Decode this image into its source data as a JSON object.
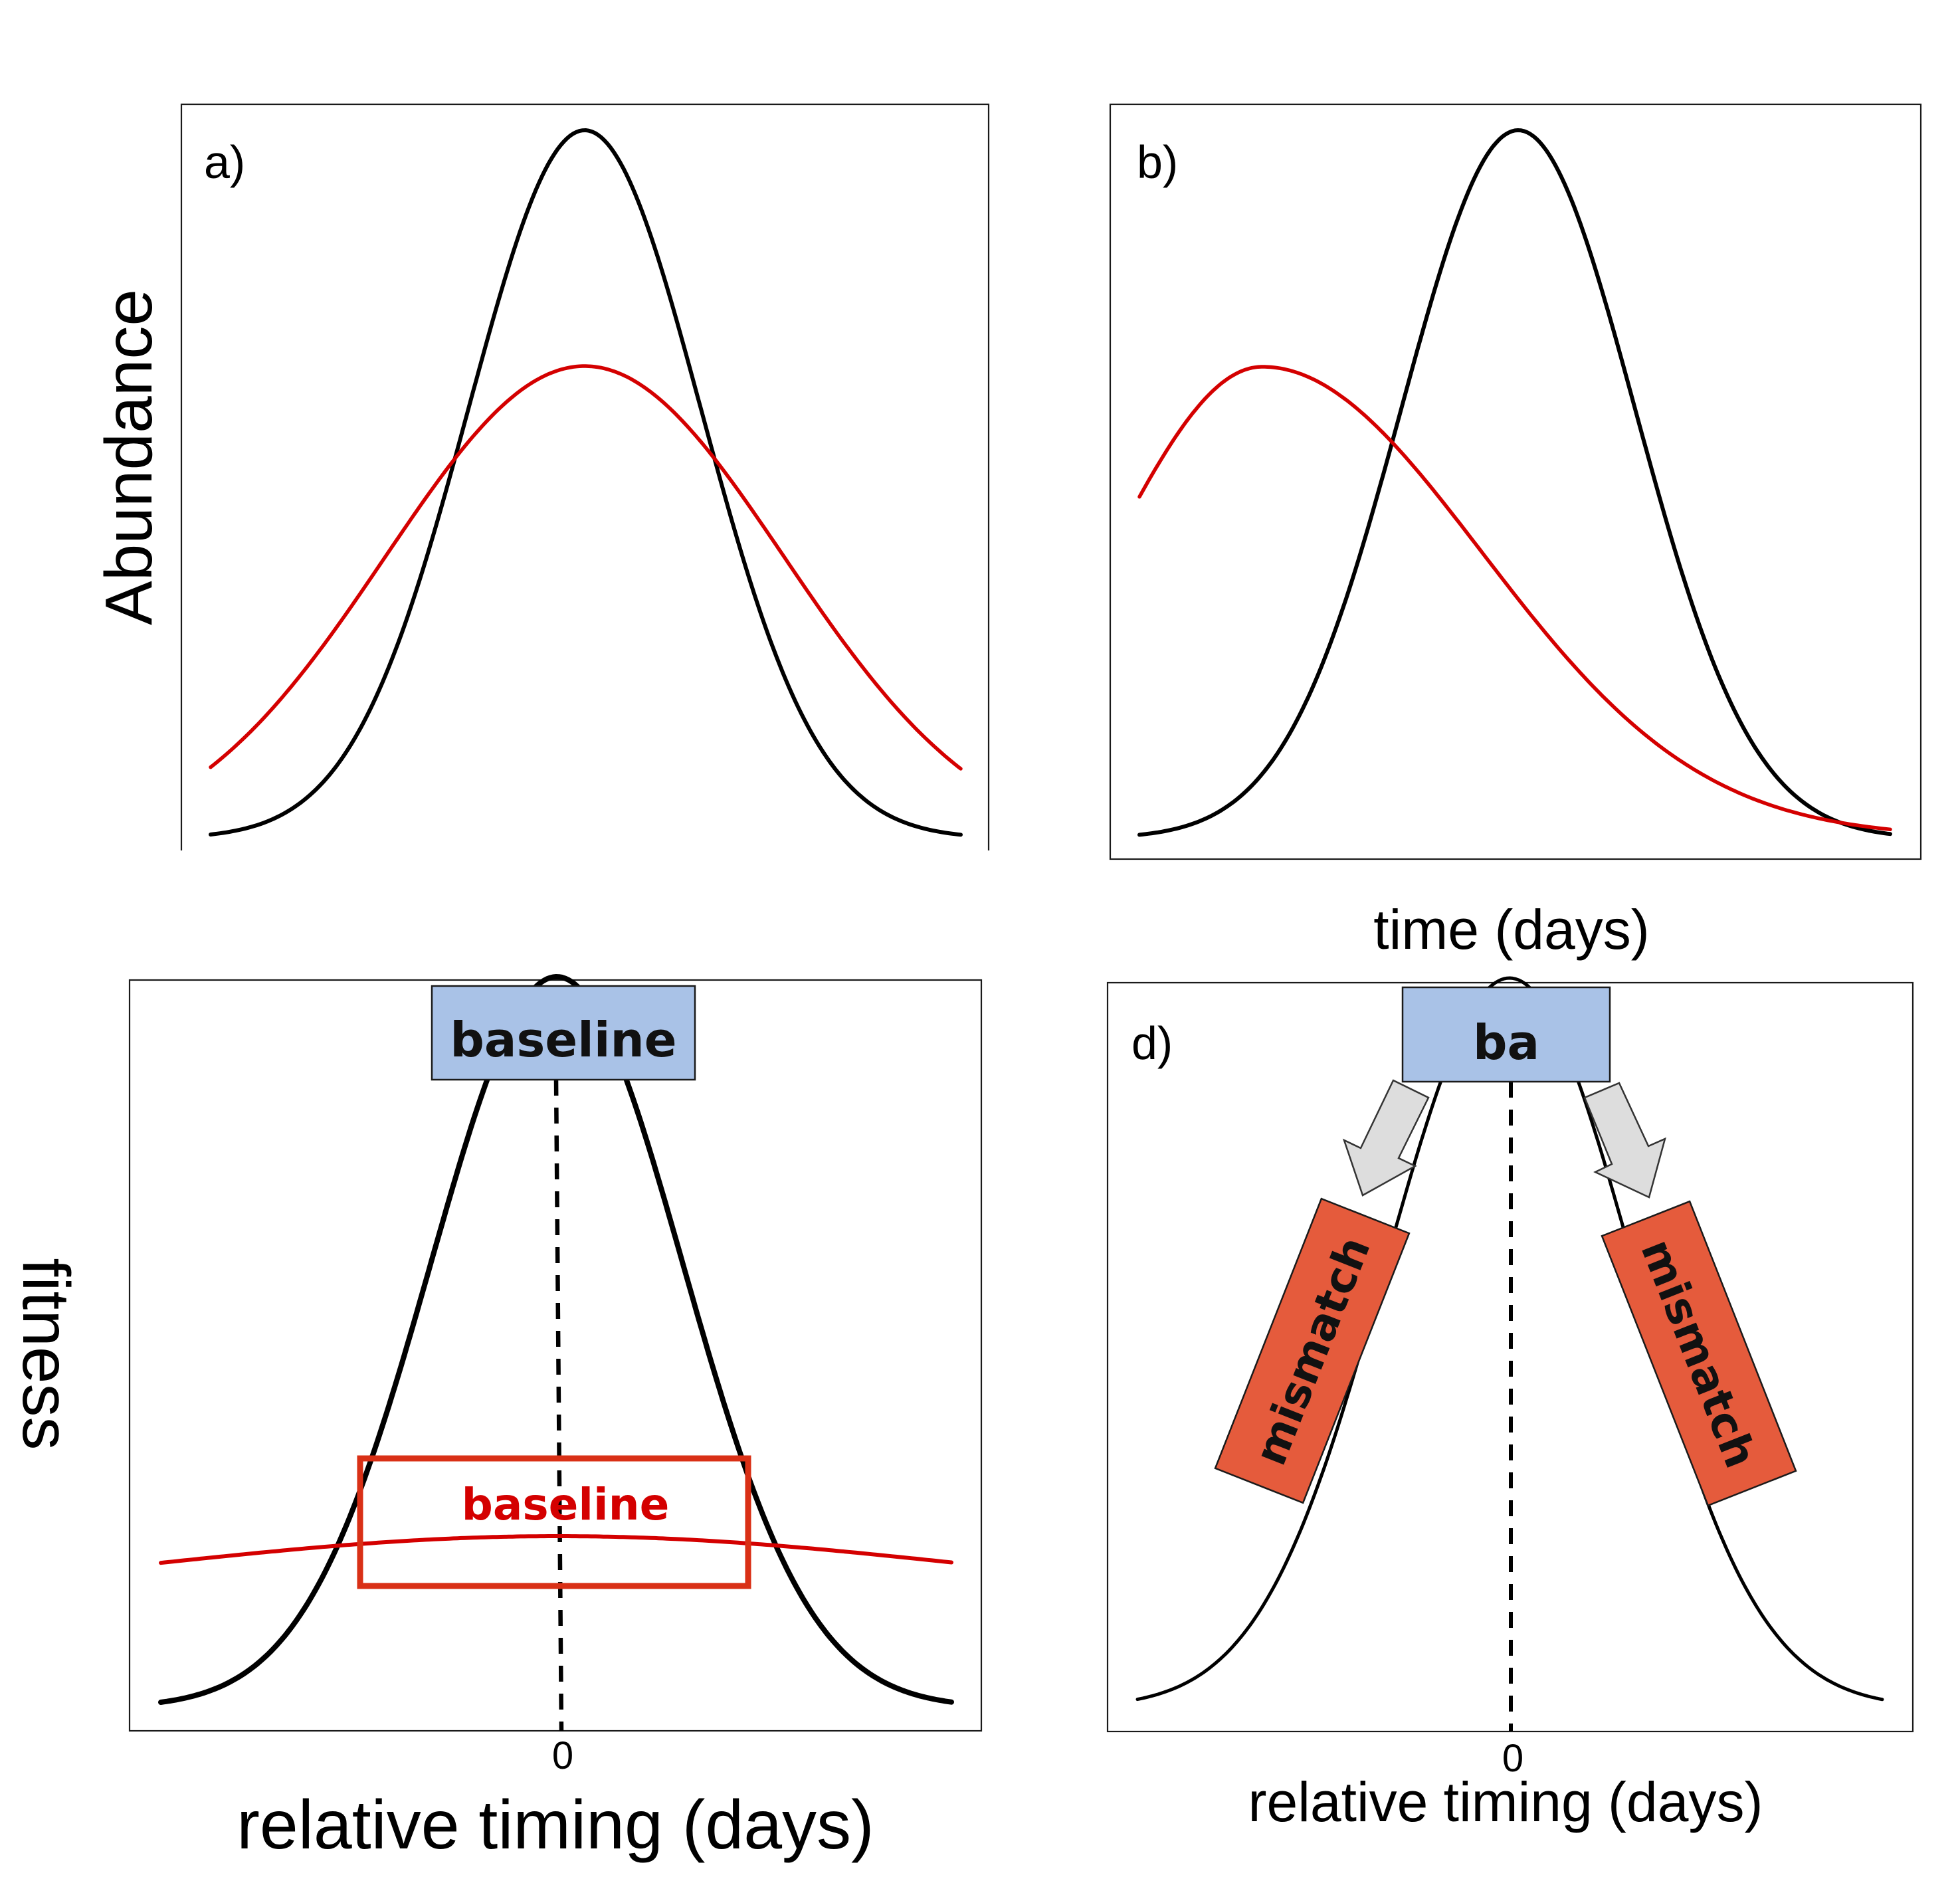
{
  "figure": {
    "axis_labels": {
      "y_top": "Abundance",
      "y_bottom": "fitness",
      "x_top": "time (days)",
      "x_bottom_left": "relative timing (days)",
      "x_bottom_right": "relative timing (days)"
    },
    "panels": {
      "a": {
        "label": "a)"
      },
      "b": {
        "label": "b)"
      },
      "c": {
        "zero_tick": "0",
        "box_top": "baseline",
        "box_bottom": "baseline"
      },
      "d": {
        "label": "d)",
        "zero_tick": "0",
        "box_top": "ba",
        "left_tag": "mismatch",
        "right_tag": "mismatch"
      }
    },
    "colors": {
      "black_series": "#000000",
      "red_series": "#d40000",
      "baseline_box_fill": "#a9c2e7",
      "baseline_red_box_stroke": "#d93016",
      "mismatch_fill": "#e55b3c",
      "arrow_fill": "#dddddd"
    }
  }
}
